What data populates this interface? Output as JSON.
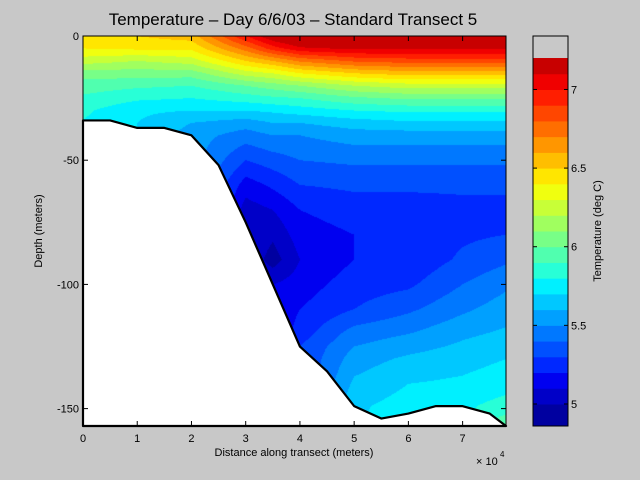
{
  "chart_data": {
    "type": "heatmap",
    "subtype": "filled-contour depth section",
    "title": "Temperature – Day 6/6/03 – Standard Transect 5",
    "xlabel": "Distance along transect (meters)",
    "ylabel": "Depth (meters)",
    "x_multiplier": "× 10",
    "x_multiplier_exp": "4",
    "xlim": [
      0,
      78000
    ],
    "ylim": [
      -157,
      0
    ],
    "xticks": [
      0,
      10000,
      20000,
      30000,
      40000,
      50000,
      60000,
      70000
    ],
    "xtick_labels": [
      "0",
      "1",
      "2",
      "3",
      "4",
      "5",
      "6",
      "7"
    ],
    "yticks": [
      0,
      -50,
      -100,
      -150
    ],
    "ytick_labels": [
      "0",
      "-50",
      "-100",
      "-150"
    ],
    "grid": false,
    "colorbar": {
      "label": "Temperature (deg C)",
      "lim": [
        4.86,
        7.34
      ],
      "ticks": [
        5,
        5.5,
        6,
        6.5,
        7
      ],
      "tick_labels": [
        "5",
        "5.5",
        "6",
        "6.5",
        "7"
      ],
      "levels": [
        4.86,
        5.0,
        5.1,
        5.2,
        5.3,
        5.4,
        5.5,
        5.6,
        5.7,
        5.8,
        5.9,
        6.0,
        6.1,
        6.2,
        6.3,
        6.4,
        6.5,
        6.6,
        6.7,
        6.8,
        6.9,
        7.0,
        7.1,
        7.2,
        7.34
      ],
      "colors": [
        "#0000a0",
        "#0000c8",
        "#0000f0",
        "#0028ff",
        "#0050ff",
        "#0078ff",
        "#00a0ff",
        "#00c8ff",
        "#00f0ff",
        "#28ffd7",
        "#50ffaf",
        "#78ff87",
        "#a0ff5f",
        "#c8ff37",
        "#f0ff0f",
        "#ffe600",
        "#ffbe00",
        "#ff9600",
        "#ff6e00",
        "#ff4600",
        "#ff1e00",
        "#f00000",
        "#c80000"
      ]
    },
    "bottom_profile": {
      "distance": [
        0,
        5000,
        10000,
        15000,
        20000,
        25000,
        30000,
        35000,
        40000,
        45000,
        50000,
        55000,
        60000,
        65000,
        70000,
        75000,
        78000
      ],
      "depth": [
        -34,
        -34,
        -37,
        -37,
        -40,
        -52,
        -75,
        -100,
        -125,
        -135,
        -149,
        -154,
        -152,
        -149,
        -149,
        -152,
        -157
      ]
    },
    "temperature_profiles": [
      {
        "distance": 0,
        "depth": [
          0,
          -5,
          -10,
          -15,
          -20,
          -25,
          -30,
          -34
        ],
        "temp": [
          6.48,
          6.4,
          6.25,
          6.05,
          5.95,
          5.88,
          5.82,
          5.8
        ]
      },
      {
        "distance": 10000,
        "depth": [
          0,
          -5,
          -10,
          -15,
          -20,
          -25,
          -30,
          -35
        ],
        "temp": [
          6.5,
          6.42,
          6.2,
          6.05,
          5.92,
          5.82,
          5.72,
          5.7
        ]
      },
      {
        "distance": 20000,
        "depth": [
          0,
          -5,
          -10,
          -15,
          -20,
          -25,
          -30,
          -35,
          -40
        ],
        "temp": [
          6.55,
          6.42,
          6.25,
          6.05,
          5.9,
          5.8,
          5.7,
          5.6,
          5.55
        ]
      },
      {
        "distance": 30000,
        "depth": [
          0,
          -5,
          -10,
          -15,
          -20,
          -25,
          -30,
          -35,
          -40,
          -50,
          -60,
          -70,
          -75
        ],
        "temp": [
          7.0,
          6.75,
          6.5,
          6.25,
          6.0,
          5.85,
          5.7,
          5.55,
          5.45,
          5.3,
          5.15,
          5.05,
          5.1
        ]
      },
      {
        "distance": 35000,
        "depth": [
          0,
          -5,
          -10,
          -15,
          -20,
          -25,
          -30,
          -35,
          -40,
          -50,
          -60,
          -70,
          -80,
          -90,
          -100
        ],
        "temp": [
          7.2,
          6.95,
          6.6,
          6.3,
          6.05,
          5.88,
          5.72,
          5.6,
          5.5,
          5.35,
          5.22,
          5.1,
          5.02,
          4.95,
          5.1
        ]
      },
      {
        "distance": 40000,
        "depth": [
          0,
          -5,
          -10,
          -15,
          -20,
          -25,
          -30,
          -35,
          -40,
          -50,
          -60,
          -70,
          -80,
          -90,
          -100,
          -110,
          -120,
          -125
        ],
        "temp": [
          7.3,
          7.08,
          6.72,
          6.4,
          6.1,
          5.9,
          5.75,
          5.6,
          5.5,
          5.4,
          5.3,
          5.2,
          5.15,
          5.1,
          5.15,
          5.2,
          5.25,
          5.3
        ]
      },
      {
        "distance": 50000,
        "depth": [
          0,
          -5,
          -10,
          -15,
          -20,
          -25,
          -30,
          -35,
          -40,
          -50,
          -60,
          -70,
          -80,
          -90,
          -100,
          -110,
          -120,
          -130,
          -140,
          -149
        ],
        "temp": [
          7.3,
          7.12,
          6.82,
          6.5,
          6.2,
          5.98,
          5.8,
          5.65,
          5.55,
          5.42,
          5.32,
          5.25,
          5.2,
          5.2,
          5.25,
          5.3,
          5.45,
          5.55,
          5.62,
          5.68
        ]
      },
      {
        "distance": 60000,
        "depth": [
          0,
          -5,
          -10,
          -15,
          -20,
          -25,
          -30,
          -35,
          -40,
          -50,
          -60,
          -70,
          -80,
          -90,
          -100,
          -110,
          -120,
          -130,
          -140,
          -152
        ],
        "temp": [
          7.3,
          7.12,
          6.85,
          6.55,
          6.25,
          6.02,
          5.82,
          5.68,
          5.55,
          5.42,
          5.32,
          5.25,
          5.22,
          5.22,
          5.28,
          5.38,
          5.5,
          5.62,
          5.7,
          5.76
        ]
      },
      {
        "distance": 70000,
        "depth": [
          0,
          -5,
          -10,
          -15,
          -20,
          -25,
          -30,
          -35,
          -40,
          -50,
          -60,
          -70,
          -80,
          -90,
          -100,
          -110,
          -120,
          -130,
          -140,
          -149
        ],
        "temp": [
          7.3,
          7.12,
          6.85,
          6.55,
          6.25,
          6.02,
          5.82,
          5.68,
          5.55,
          5.42,
          5.32,
          5.27,
          5.28,
          5.32,
          5.4,
          5.48,
          5.58,
          5.66,
          5.72,
          5.78
        ]
      },
      {
        "distance": 78000,
        "depth": [
          0,
          -5,
          -10,
          -15,
          -20,
          -25,
          -30,
          -35,
          -40,
          -50,
          -60,
          -70,
          -80,
          -90,
          -100,
          -110,
          -120,
          -130,
          -140,
          -150,
          -157
        ],
        "temp": [
          7.3,
          7.12,
          6.85,
          6.55,
          6.25,
          6.02,
          5.82,
          5.68,
          5.55,
          5.42,
          5.32,
          5.27,
          5.3,
          5.38,
          5.48,
          5.55,
          5.62,
          5.7,
          5.76,
          5.85,
          6.0
        ]
      }
    ]
  }
}
